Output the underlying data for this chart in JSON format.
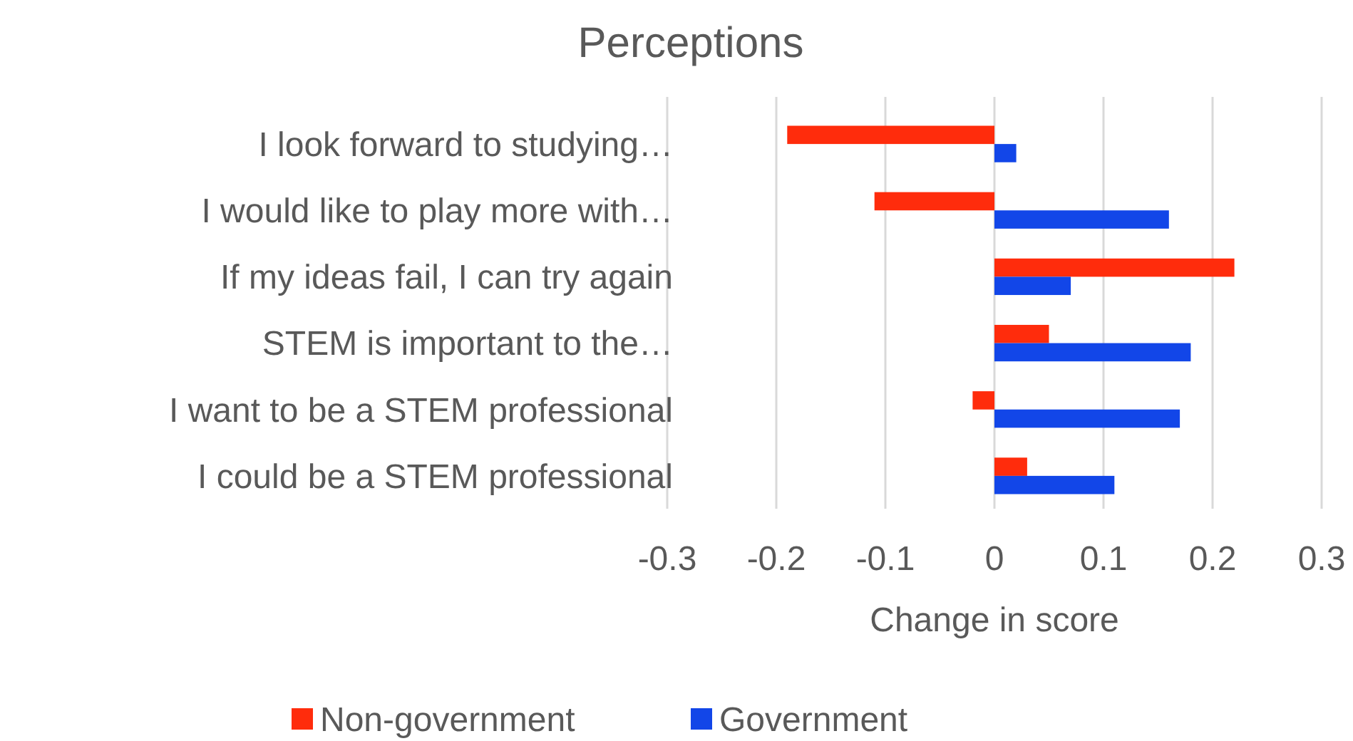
{
  "chart_data": {
    "type": "bar",
    "orientation": "horizontal",
    "title": "Perceptions",
    "xlabel": "Change in score",
    "categories": [
      "I look forward to studying…",
      "I would like to play more with…",
      "If my ideas fail, I can try again",
      "STEM is important to the…",
      "I want to be a STEM professional",
      "I could be a STEM professional"
    ],
    "series": [
      {
        "name": "Non-government",
        "color": "#ff2c0c",
        "values": [
          -0.19,
          -0.11,
          0.22,
          0.05,
          -0.02,
          0.03
        ]
      },
      {
        "name": "Government",
        "color": "#1246e8",
        "values": [
          0.02,
          0.16,
          0.07,
          0.18,
          0.17,
          0.11
        ]
      }
    ],
    "xlim": [
      -0.3,
      0.3
    ],
    "xticks": [
      -0.3,
      -0.2,
      -0.1,
      0,
      0.1,
      0.2,
      0.3
    ],
    "grid": "x",
    "legend": "bottom"
  }
}
